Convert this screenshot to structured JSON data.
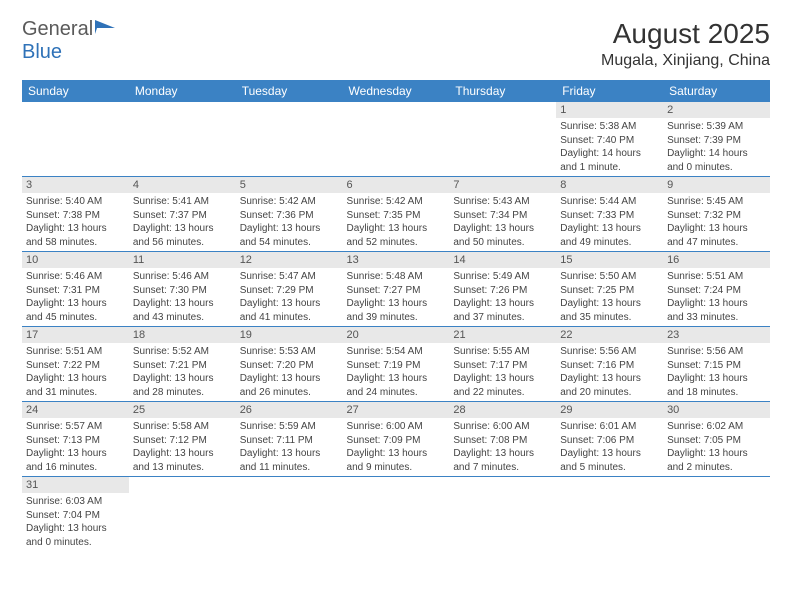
{
  "brand": {
    "part1": "General",
    "part2": "Blue"
  },
  "title": "August 2025",
  "location": "Mugala, Xinjiang, China",
  "colors": {
    "header_bg": "#3b82c4",
    "header_text": "#ffffff",
    "daynum_bg": "#e8e8e8",
    "border": "#3b82c4",
    "brand_gray": "#5a5a5a",
    "brand_blue": "#2f72b8"
  },
  "weekdays": [
    "Sunday",
    "Monday",
    "Tuesday",
    "Wednesday",
    "Thursday",
    "Friday",
    "Saturday"
  ],
  "layout": {
    "first_weekday_index": 5,
    "days_in_month": 31,
    "rows": 6,
    "cols": 7
  },
  "days": {
    "1": {
      "sunrise": "Sunrise: 5:38 AM",
      "sunset": "Sunset: 7:40 PM",
      "daylight": "Daylight: 14 hours and 1 minute."
    },
    "2": {
      "sunrise": "Sunrise: 5:39 AM",
      "sunset": "Sunset: 7:39 PM",
      "daylight": "Daylight: 14 hours and 0 minutes."
    },
    "3": {
      "sunrise": "Sunrise: 5:40 AM",
      "sunset": "Sunset: 7:38 PM",
      "daylight": "Daylight: 13 hours and 58 minutes."
    },
    "4": {
      "sunrise": "Sunrise: 5:41 AM",
      "sunset": "Sunset: 7:37 PM",
      "daylight": "Daylight: 13 hours and 56 minutes."
    },
    "5": {
      "sunrise": "Sunrise: 5:42 AM",
      "sunset": "Sunset: 7:36 PM",
      "daylight": "Daylight: 13 hours and 54 minutes."
    },
    "6": {
      "sunrise": "Sunrise: 5:42 AM",
      "sunset": "Sunset: 7:35 PM",
      "daylight": "Daylight: 13 hours and 52 minutes."
    },
    "7": {
      "sunrise": "Sunrise: 5:43 AM",
      "sunset": "Sunset: 7:34 PM",
      "daylight": "Daylight: 13 hours and 50 minutes."
    },
    "8": {
      "sunrise": "Sunrise: 5:44 AM",
      "sunset": "Sunset: 7:33 PM",
      "daylight": "Daylight: 13 hours and 49 minutes."
    },
    "9": {
      "sunrise": "Sunrise: 5:45 AM",
      "sunset": "Sunset: 7:32 PM",
      "daylight": "Daylight: 13 hours and 47 minutes."
    },
    "10": {
      "sunrise": "Sunrise: 5:46 AM",
      "sunset": "Sunset: 7:31 PM",
      "daylight": "Daylight: 13 hours and 45 minutes."
    },
    "11": {
      "sunrise": "Sunrise: 5:46 AM",
      "sunset": "Sunset: 7:30 PM",
      "daylight": "Daylight: 13 hours and 43 minutes."
    },
    "12": {
      "sunrise": "Sunrise: 5:47 AM",
      "sunset": "Sunset: 7:29 PM",
      "daylight": "Daylight: 13 hours and 41 minutes."
    },
    "13": {
      "sunrise": "Sunrise: 5:48 AM",
      "sunset": "Sunset: 7:27 PM",
      "daylight": "Daylight: 13 hours and 39 minutes."
    },
    "14": {
      "sunrise": "Sunrise: 5:49 AM",
      "sunset": "Sunset: 7:26 PM",
      "daylight": "Daylight: 13 hours and 37 minutes."
    },
    "15": {
      "sunrise": "Sunrise: 5:50 AM",
      "sunset": "Sunset: 7:25 PM",
      "daylight": "Daylight: 13 hours and 35 minutes."
    },
    "16": {
      "sunrise": "Sunrise: 5:51 AM",
      "sunset": "Sunset: 7:24 PM",
      "daylight": "Daylight: 13 hours and 33 minutes."
    },
    "17": {
      "sunrise": "Sunrise: 5:51 AM",
      "sunset": "Sunset: 7:22 PM",
      "daylight": "Daylight: 13 hours and 31 minutes."
    },
    "18": {
      "sunrise": "Sunrise: 5:52 AM",
      "sunset": "Sunset: 7:21 PM",
      "daylight": "Daylight: 13 hours and 28 minutes."
    },
    "19": {
      "sunrise": "Sunrise: 5:53 AM",
      "sunset": "Sunset: 7:20 PM",
      "daylight": "Daylight: 13 hours and 26 minutes."
    },
    "20": {
      "sunrise": "Sunrise: 5:54 AM",
      "sunset": "Sunset: 7:19 PM",
      "daylight": "Daylight: 13 hours and 24 minutes."
    },
    "21": {
      "sunrise": "Sunrise: 5:55 AM",
      "sunset": "Sunset: 7:17 PM",
      "daylight": "Daylight: 13 hours and 22 minutes."
    },
    "22": {
      "sunrise": "Sunrise: 5:56 AM",
      "sunset": "Sunset: 7:16 PM",
      "daylight": "Daylight: 13 hours and 20 minutes."
    },
    "23": {
      "sunrise": "Sunrise: 5:56 AM",
      "sunset": "Sunset: 7:15 PM",
      "daylight": "Daylight: 13 hours and 18 minutes."
    },
    "24": {
      "sunrise": "Sunrise: 5:57 AM",
      "sunset": "Sunset: 7:13 PM",
      "daylight": "Daylight: 13 hours and 16 minutes."
    },
    "25": {
      "sunrise": "Sunrise: 5:58 AM",
      "sunset": "Sunset: 7:12 PM",
      "daylight": "Daylight: 13 hours and 13 minutes."
    },
    "26": {
      "sunrise": "Sunrise: 5:59 AM",
      "sunset": "Sunset: 7:11 PM",
      "daylight": "Daylight: 13 hours and 11 minutes."
    },
    "27": {
      "sunrise": "Sunrise: 6:00 AM",
      "sunset": "Sunset: 7:09 PM",
      "daylight": "Daylight: 13 hours and 9 minutes."
    },
    "28": {
      "sunrise": "Sunrise: 6:00 AM",
      "sunset": "Sunset: 7:08 PM",
      "daylight": "Daylight: 13 hours and 7 minutes."
    },
    "29": {
      "sunrise": "Sunrise: 6:01 AM",
      "sunset": "Sunset: 7:06 PM",
      "daylight": "Daylight: 13 hours and 5 minutes."
    },
    "30": {
      "sunrise": "Sunrise: 6:02 AM",
      "sunset": "Sunset: 7:05 PM",
      "daylight": "Daylight: 13 hours and 2 minutes."
    },
    "31": {
      "sunrise": "Sunrise: 6:03 AM",
      "sunset": "Sunset: 7:04 PM",
      "daylight": "Daylight: 13 hours and 0 minutes."
    }
  }
}
